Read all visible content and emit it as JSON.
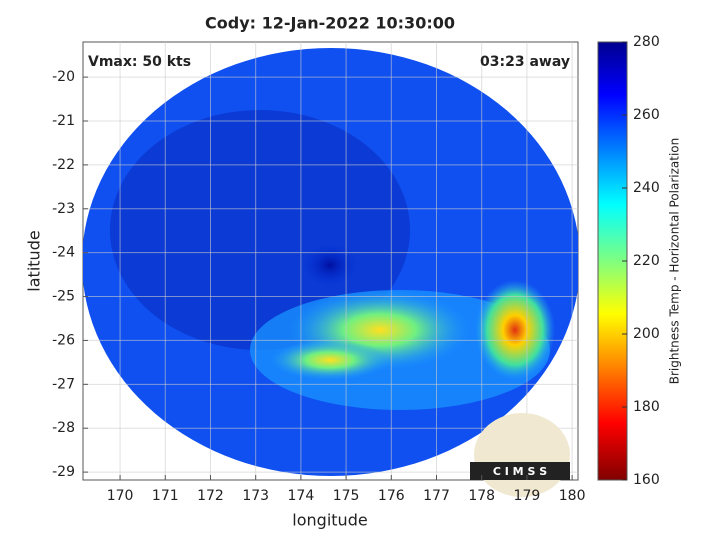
{
  "chart_data": {
    "type": "image",
    "title": "Cody: 12-Jan-2022 10:30:00",
    "annotations": [
      "Vmax: 50 kts",
      "03:23 away"
    ],
    "logo": "C I M S S",
    "xlabel": "longitude",
    "ylabel": "latitude",
    "xlim": [
      169.18,
      180.13
    ],
    "xticks": [
      170,
      171,
      172,
      173,
      174,
      175,
      176,
      177,
      178,
      179,
      180
    ],
    "ylim": [
      -29.18,
      -19.2
    ],
    "yticks": [
      -20,
      -21,
      -22,
      -23,
      -24,
      -25,
      -26,
      -27,
      -28,
      -29
    ],
    "grid": true,
    "colorbar": {
      "label": "Brightness Temp - Horizontal Polarization",
      "lim": [
        160,
        280
      ],
      "ticks": [
        280,
        260,
        240,
        220,
        200,
        180,
        160
      ]
    }
  }
}
